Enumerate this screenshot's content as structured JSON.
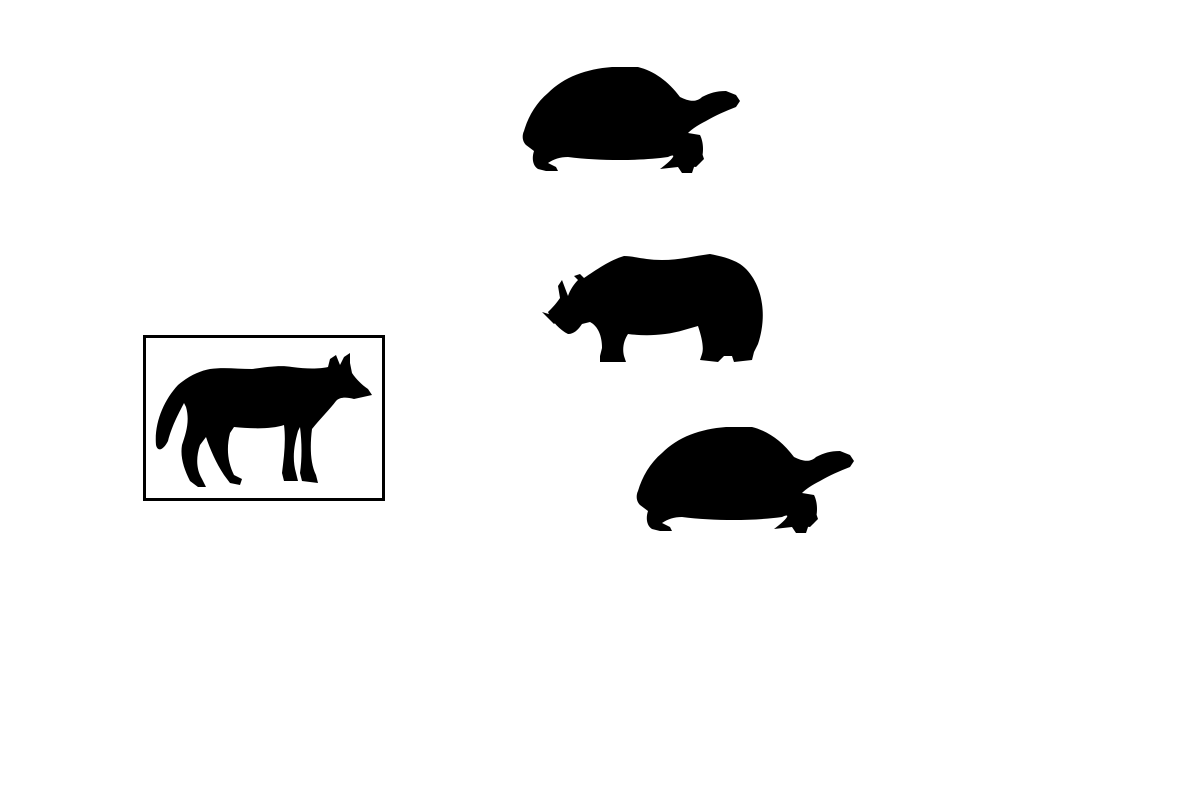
{
  "scene": {
    "background_color": "#ffffff",
    "silhouette_color": "#000000",
    "frame_color": "#000000",
    "items": [
      {
        "animal": "wolf",
        "icon": "wolf-icon",
        "highlighted": true
      },
      {
        "animal": "tortoise",
        "icon": "tortoise-icon",
        "highlighted": false
      },
      {
        "animal": "rhinoceros",
        "icon": "rhinoceros-icon",
        "highlighted": false
      },
      {
        "animal": "tortoise",
        "icon": "tortoise-icon",
        "highlighted": false
      }
    ]
  }
}
